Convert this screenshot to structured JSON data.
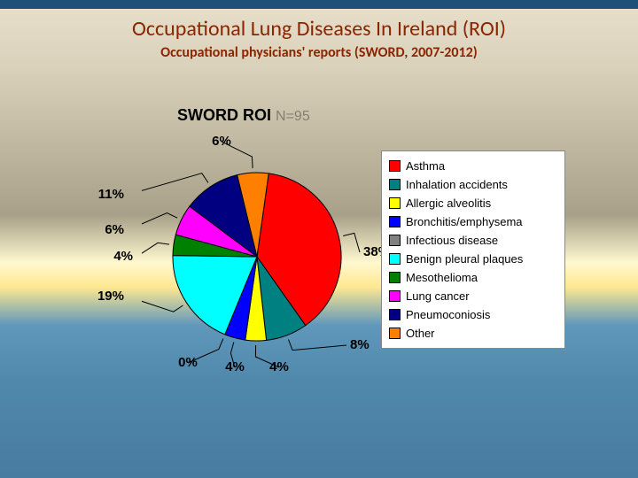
{
  "title": "Occupational Lung Diseases In Ireland (ROI)",
  "subtitle": "Occupational physicians' reports (SWORD, 2007-2012)",
  "chart": {
    "type": "pie",
    "title_main": "SWORD ROI",
    "title_n": "N=95",
    "background_color": "#ffffff",
    "border_color": "#888888",
    "radius": 95,
    "start_angle_deg": -82,
    "slice_border_color": "#000000",
    "label_fontsize": 15,
    "label_fontweight": "bold",
    "title_fontsize": 18,
    "slices": [
      {
        "label": "Asthma",
        "value": 38,
        "color": "#ff0000",
        "display": "38%"
      },
      {
        "label": "Inhalation accidents",
        "value": 8,
        "color": "#008080",
        "display": "8%"
      },
      {
        "label": "Allergic alveolitis",
        "value": 4,
        "color": "#ffff00",
        "display": "4%"
      },
      {
        "label": "Bronchitis/emphysema",
        "value": 4,
        "color": "#0000ff",
        "display": "4%"
      },
      {
        "label": "Infectious disease",
        "value": 0,
        "color": "#808080",
        "display": "0%"
      },
      {
        "label": "Benign pleural plaques",
        "value": 19,
        "color": "#00ffff",
        "display": "19%"
      },
      {
        "label": "Mesothelioma",
        "value": 4,
        "color": "#008000",
        "display": "4%"
      },
      {
        "label": "Lung cancer",
        "value": 6,
        "color": "#ff00ff",
        "display": "6%"
      },
      {
        "label": "Pneumoconiosis",
        "value": 11,
        "color": "#000080",
        "display": "11%"
      },
      {
        "label": "Other",
        "value": 6,
        "color": "#ff8000",
        "display": "6%"
      }
    ]
  }
}
